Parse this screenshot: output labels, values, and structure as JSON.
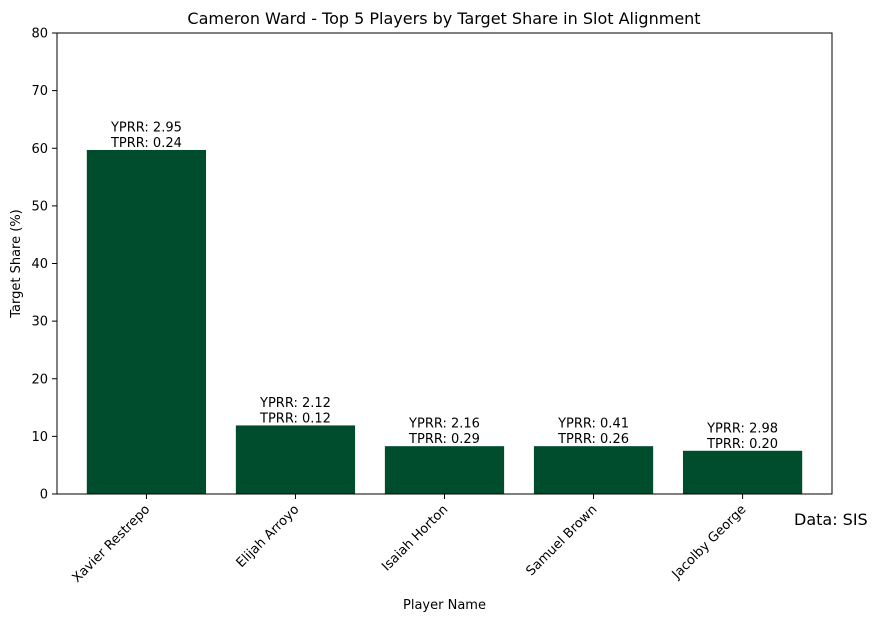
{
  "source_note": "Data: SIS",
  "chart_data": {
    "type": "bar",
    "title": "Cameron Ward - Top 5 Players by Target Share in Slot Alignment",
    "xlabel": "Player Name",
    "ylabel": "Target Share (%)",
    "ylim": [
      0,
      80
    ],
    "yticks": [
      "0",
      "10",
      "20",
      "30",
      "40",
      "50",
      "60",
      "70",
      "80"
    ],
    "grid": false,
    "legend": "none",
    "bar_color": "#004d2e",
    "categories": [
      "Xavier Restrepo",
      "Elijah Arroyo",
      "Isaiah Horton",
      "Samuel Brown",
      "Jacolby George"
    ],
    "values": [
      59.7,
      11.9,
      8.3,
      8.3,
      7.5
    ],
    "data_labels": [
      [
        "YPRR: 2.95",
        "TPRR: 0.24"
      ],
      [
        "YPRR: 2.12",
        "TPRR: 0.12"
      ],
      [
        "YPRR: 2.16",
        "TPRR: 0.29"
      ],
      [
        "YPRR: 0.41",
        "TPRR: 0.26"
      ],
      [
        "YPRR: 2.98",
        "TPRR: 0.20"
      ]
    ]
  }
}
